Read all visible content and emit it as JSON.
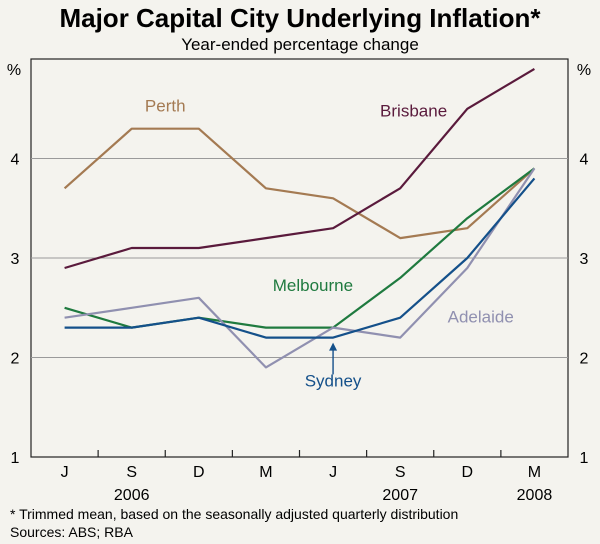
{
  "chart_data": {
    "type": "line",
    "title": "Major Capital City Underlying Inflation*",
    "subtitle": "Year-ended percentage change",
    "ylabel_left": "%",
    "ylabel_right": "%",
    "ylim": [
      1,
      5
    ],
    "yticks": [
      1,
      2,
      3,
      4
    ],
    "categories": [
      "J",
      "S",
      "D",
      "M",
      "J",
      "S",
      "D",
      "M"
    ],
    "year_labels": [
      {
        "label": "2006",
        "index": 1
      },
      {
        "label": "2007",
        "index": 5
      },
      {
        "label": "2008",
        "index": 7
      }
    ],
    "series": [
      {
        "name": "Perth",
        "color": "#a47a52",
        "values": [
          3.7,
          4.3,
          4.3,
          3.7,
          3.6,
          3.2,
          3.3,
          3.9
        ]
      },
      {
        "name": "Brisbane",
        "color": "#5a1a3c",
        "values": [
          2.9,
          3.1,
          3.1,
          3.2,
          3.3,
          3.7,
          4.5,
          4.9
        ]
      },
      {
        "name": "Melbourne",
        "color": "#1f7a3f",
        "values": [
          2.5,
          2.3,
          2.4,
          2.3,
          2.3,
          2.8,
          3.4,
          3.9
        ]
      },
      {
        "name": "Adelaide",
        "color": "#9090b0",
        "values": [
          2.4,
          2.5,
          2.6,
          1.9,
          2.3,
          2.2,
          2.9,
          3.9
        ]
      },
      {
        "name": "Sydney",
        "color": "#14508a",
        "values": [
          2.3,
          2.3,
          2.4,
          2.2,
          2.2,
          2.4,
          3.0,
          3.8
        ]
      }
    ],
    "footnote": "*    Trimmed mean, based on the seasonally adjusted quarterly distribution",
    "sources": "Sources: ABS; RBA"
  }
}
